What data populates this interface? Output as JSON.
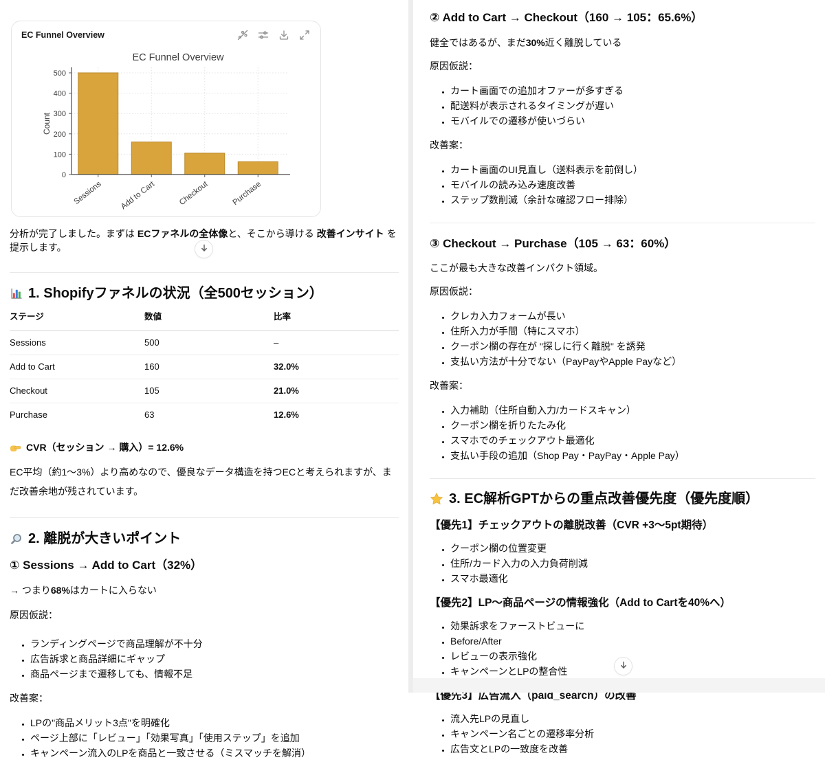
{
  "chart_card": {
    "title": "EC Funnel Overview",
    "toolbar_icons": [
      "interactive-chart-toggle",
      "chart-settings",
      "download",
      "expand"
    ]
  },
  "chart_data": {
    "type": "bar",
    "title": "EC Funnel Overview",
    "categories": [
      "Sessions",
      "Add to Cart",
      "Checkout",
      "Purchase"
    ],
    "values": [
      500,
      160,
      105,
      63
    ],
    "xlabel": "",
    "ylabel": "Count",
    "ylim": [
      0,
      500
    ],
    "yticks": [
      0,
      100,
      200,
      300,
      400,
      500
    ],
    "bar_color": "#D9A43C",
    "grid": true,
    "legend": false
  },
  "left": {
    "intro": {
      "s1": "分析が完了しました。まずは ",
      "b1": "ECファネルの全体像",
      "s2": "と、そこから導ける ",
      "b2": "改善インサイト",
      "s3": " を提示します。"
    },
    "section1": {
      "icon": "bar-chart-emoji",
      "title": "1. Shopifyファネルの状況（全500セッション）",
      "table": {
        "headers": [
          "ステージ",
          "数値",
          "比率"
        ],
        "rows": [
          [
            "Sessions",
            "500",
            "–"
          ],
          [
            "Add to Cart",
            "160",
            "32.0%"
          ],
          [
            "Checkout",
            "105",
            "21.0%"
          ],
          [
            "Purchase",
            "63",
            "12.6%"
          ]
        ]
      },
      "cvr_icon": "pointing-right-emoji",
      "cvr": "CVR（セッション → 購入）= 12.6%",
      "note": "EC平均（約1〜3%）より高めなので、優良なデータ構造を持つECと考えられますが、まだ改善余地が残されています。"
    },
    "section2": {
      "icon": "magnifier-emoji",
      "title": "2. 離脱が大きいポイント",
      "sub1": {
        "title": "① Sessions → Add to Cart（32%）",
        "lead_pre": "→ つまり",
        "lead_bold": "68%",
        "lead_post": "はカートに入らない",
        "causes_label": "原因仮説：",
        "causes": [
          "ランディングページで商品理解が不十分",
          "広告訴求と商品詳細にギャップ",
          "商品ページまで遷移しても、情報不足"
        ],
        "fixes_label": "改善案：",
        "fixes": [
          "LPの\"商品メリット3点\"を明確化",
          "ページ上部に「レビュー」「効果写真」「使用ステップ」を追加",
          "キャンペーン流入のLPを商品と一致させる（ミスマッチを解消）"
        ]
      }
    }
  },
  "right": {
    "sub2": {
      "title": "② Add to Cart → Checkout（160 → 105：65.6%）",
      "lead_pre": "健全ではあるが、まだ",
      "lead_bold": "30%",
      "lead_post": "近く離脱している",
      "causes_label": "原因仮説：",
      "causes": [
        "カート画面での追加オファーが多すぎる",
        "配送料が表示されるタイミングが遅い",
        "モバイルでの遷移が使いづらい"
      ],
      "fixes_label": "改善案：",
      "fixes": [
        "カート画面のUI見直し（送料表示を前倒し）",
        "モバイルの読み込み速度改善",
        "ステップ数削減（余計な確認フロー排除）"
      ]
    },
    "sub3": {
      "title": "③ Checkout → Purchase（105 → 63：60%）",
      "lead": "ここが最も大きな改善インパクト領域。",
      "causes_label": "原因仮説：",
      "causes": [
        "クレカ入力フォームが長い",
        "住所入力が手間（特にスマホ）",
        "クーポン欄の存在が \"探しに行く離脱\" を誘発",
        "支払い方法が十分でない（PayPayやApple Payなど）"
      ],
      "fixes_label": "改善案：",
      "fixes": [
        "入力補助（住所自動入力/カードスキャン）",
        "クーポン欄を折りたたみ化",
        "スマホでのチェックアウト最適化",
        "支払い手段の追加（Shop Pay・PayPay・Apple Pay）"
      ]
    },
    "section3": {
      "icon": "star-emoji",
      "title": "3. EC解析GPTからの重点改善優先度（優先度順）",
      "priorities": [
        {
          "title": "【優先1】チェックアウトの離脱改善（CVR +3〜5pt期待）",
          "items": [
            "クーポン欄の位置変更",
            "住所/カード入力の入力負荷削減",
            "スマホ最適化"
          ]
        },
        {
          "title": "【優先2】LP〜商品ページの情報強化（Add to Cartを40%へ）",
          "items": [
            "効果訴求をファーストビューに",
            "Before/After",
            "レビューの表示強化",
            "キャンペーンとLPの整合性"
          ]
        },
        {
          "title": "【優先3】広告流入（paid_search）の改善",
          "items": [
            "流入先LPの見直し",
            "キャンペーン名ごとの遷移率分析",
            "広告文とLPの一致度を改善"
          ]
        }
      ]
    }
  }
}
